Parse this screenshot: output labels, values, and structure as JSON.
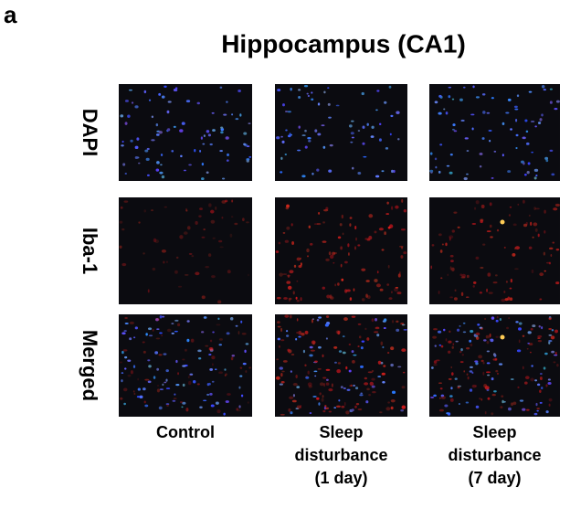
{
  "panel_label": "a",
  "title": "Hippocampus (CA1)",
  "rows": [
    "DAPI",
    "Iba-1",
    "Merged"
  ],
  "columns": [
    {
      "lines": [
        "Control"
      ]
    },
    {
      "lines": [
        "Sleep",
        "disturbance",
        "(1 day)"
      ]
    },
    {
      "lines": [
        "Sleep",
        "disturbance",
        "(7 day)"
      ]
    }
  ]
}
